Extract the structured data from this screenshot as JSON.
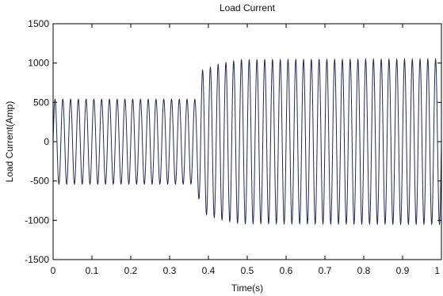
{
  "chart_data": {
    "type": "line",
    "title": "Load Current",
    "xlabel": "Time(s)",
    "ylabel": "Load Current(Amp)",
    "xlim": [
      0,
      1
    ],
    "ylim": [
      -1500,
      1500
    ],
    "x_ticks": [
      0,
      0.1,
      0.2,
      0.3,
      0.4,
      0.5,
      0.6,
      0.7,
      0.8,
      0.9,
      1
    ],
    "x_tick_labels": [
      "0",
      "0.1",
      "0.2",
      "0.3",
      "0.4",
      "0.5",
      "0.6",
      "0.7",
      "0.8",
      "0.9",
      "1"
    ],
    "y_ticks": [
      -1500,
      -1000,
      -500,
      0,
      500,
      1000,
      1500
    ],
    "y_tick_labels": [
      "-1500",
      "-1000",
      "-500",
      "0",
      "500",
      "1000",
      "1500"
    ],
    "grid": false,
    "series": [
      {
        "color": "#1f2a5a",
        "waveform": "sinusoid",
        "frequency_hz": 50,
        "envelope": [
          {
            "t": 0.0,
            "amplitude": 540
          },
          {
            "t": 0.37,
            "amplitude": 540
          },
          {
            "t": 0.38,
            "amplitude": 900
          },
          {
            "t": 0.43,
            "amplitude": 990
          },
          {
            "t": 0.48,
            "amplitude": 1040
          },
          {
            "t": 1.0,
            "amplitude": 1050
          }
        ]
      }
    ]
  }
}
